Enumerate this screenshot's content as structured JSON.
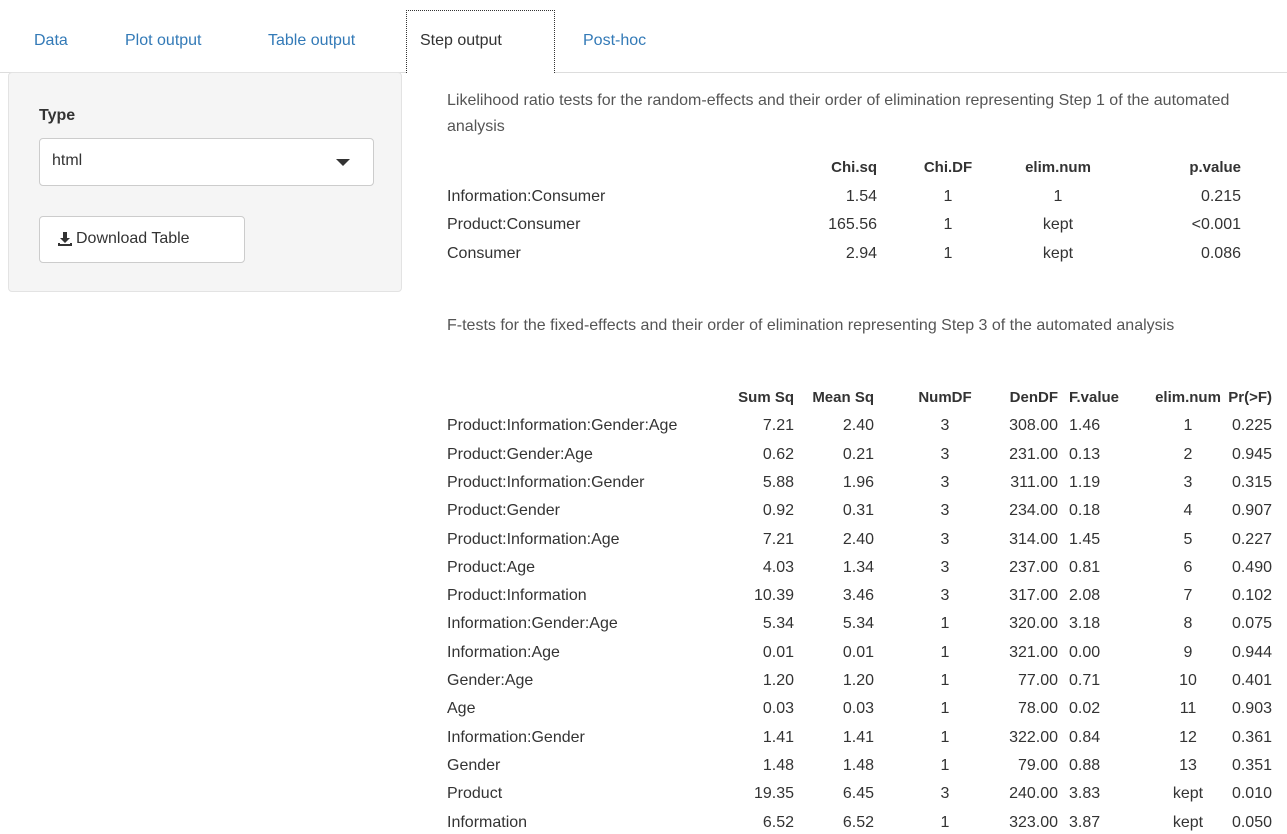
{
  "tabs": [
    "Data",
    "Plot output",
    "Table output",
    "Step output",
    "Post-hoc"
  ],
  "active_tab": "Step output",
  "sidebar": {
    "type_label": "Type",
    "select_value": "html",
    "button": "Download Table"
  },
  "random_table": {
    "caption": "Likelihood ratio tests for the random-effects and their order of elimination representing Step 1 of the automated analysis",
    "columns": [
      "Chi.sq",
      "Chi.DF",
      "elim.num",
      "p.value"
    ],
    "rows": [
      [
        "Information:Consumer",
        "1.54",
        "1",
        "1",
        "0.215"
      ],
      [
        "Product:Consumer",
        "165.56",
        "1",
        "kept",
        "<0.001"
      ],
      [
        "Consumer",
        "2.94",
        "1",
        "kept",
        "0.086"
      ]
    ]
  },
  "fixed_table": {
    "caption": "F-tests for the fixed-effects and their order of elimination representing Step 3 of the automated analysis",
    "columns": [
      "Sum Sq",
      "Mean Sq",
      "NumDF",
      "DenDF",
      "F.value",
      "elim.num",
      "Pr(>F)"
    ],
    "rows": [
      [
        "Product:Information:Gender:Age",
        "7.21",
        "2.40",
        "3",
        "308.00",
        "1.46",
        "1",
        "0.225"
      ],
      [
        "Product:Gender:Age",
        "0.62",
        "0.21",
        "3",
        "231.00",
        "0.13",
        "2",
        "0.945"
      ],
      [
        "Product:Information:Gender",
        "5.88",
        "1.96",
        "3",
        "311.00",
        "1.19",
        "3",
        "0.315"
      ],
      [
        "Product:Gender",
        "0.92",
        "0.31",
        "3",
        "234.00",
        "0.18",
        "4",
        "0.907"
      ],
      [
        "Product:Information:Age",
        "7.21",
        "2.40",
        "3",
        "314.00",
        "1.45",
        "5",
        "0.227"
      ],
      [
        "Product:Age",
        "4.03",
        "1.34",
        "3",
        "237.00",
        "0.81",
        "6",
        "0.490"
      ],
      [
        "Product:Information",
        "10.39",
        "3.46",
        "3",
        "317.00",
        "2.08",
        "7",
        "0.102"
      ],
      [
        "Information:Gender:Age",
        "5.34",
        "5.34",
        "1",
        "320.00",
        "3.18",
        "8",
        "0.075"
      ],
      [
        "Information:Age",
        "0.01",
        "0.01",
        "1",
        "321.00",
        "0.00",
        "9",
        "0.944"
      ],
      [
        "Gender:Age",
        "1.20",
        "1.20",
        "1",
        "77.00",
        "0.71",
        "10",
        "0.401"
      ],
      [
        "Age",
        "0.03",
        "0.03",
        "1",
        "78.00",
        "0.02",
        "11",
        "0.903"
      ],
      [
        "Information:Gender",
        "1.41",
        "1.41",
        "1",
        "322.00",
        "0.84",
        "12",
        "0.361"
      ],
      [
        "Gender",
        "1.48",
        "1.48",
        "1",
        "79.00",
        "0.88",
        "13",
        "0.351"
      ],
      [
        "Product",
        "19.35",
        "6.45",
        "3",
        "240.00",
        "3.83",
        "kept",
        "0.010"
      ],
      [
        "Information",
        "6.52",
        "6.52",
        "1",
        "323.00",
        "3.87",
        "kept",
        "0.050"
      ]
    ]
  }
}
